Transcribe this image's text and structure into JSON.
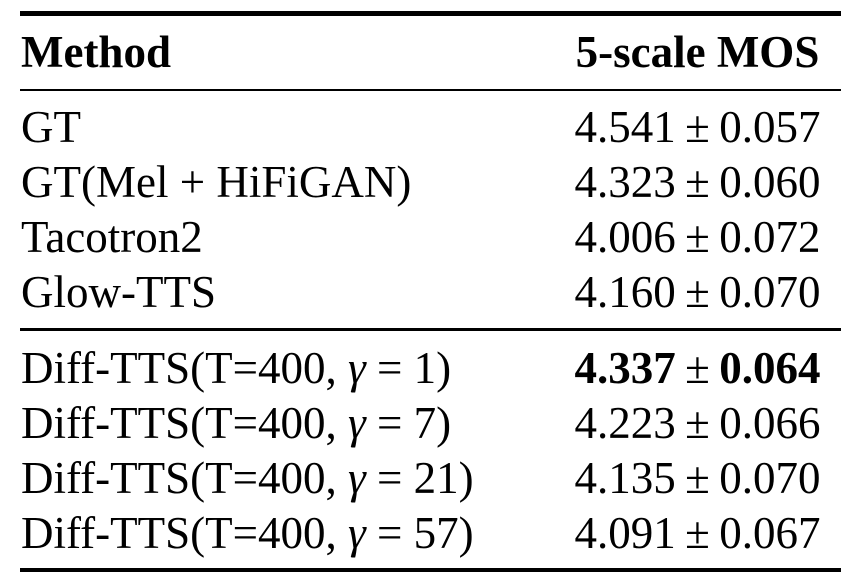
{
  "colors": {
    "background": "#ffffff",
    "text": "#000000",
    "rule": "#000000"
  },
  "table": {
    "columns": {
      "method": "Method",
      "mos": "5-scale MOS"
    },
    "pm_sign": "±",
    "sections": [
      {
        "rows": [
          {
            "label": "GT",
            "mos": "4.541",
            "err": "0.057"
          },
          {
            "label": "GT(Mel + HiFiGAN)",
            "mos": "4.323",
            "err": "0.060"
          },
          {
            "label": "Tacotron2",
            "mos": "4.006",
            "err": "0.072"
          },
          {
            "label": "Glow-TTS",
            "mos": "4.160",
            "err": "0.070"
          }
        ]
      },
      {
        "rows": [
          {
            "label_prefix": "Diff-TTS(T=400, ",
            "gamma": "γ",
            "label_suffix": " = 1)",
            "mos": "4.337",
            "err": "0.064",
            "bold": true
          },
          {
            "label_prefix": "Diff-TTS(T=400, ",
            "gamma": "γ",
            "label_suffix": " = 7)",
            "mos": "4.223",
            "err": "0.066"
          },
          {
            "label_prefix": "Diff-TTS(T=400, ",
            "gamma": "γ",
            "label_suffix": " = 21)",
            "mos": "4.135",
            "err": "0.070"
          },
          {
            "label_prefix": "Diff-TTS(T=400, ",
            "gamma": "γ",
            "label_suffix": " = 57)",
            "mos": "4.091",
            "err": "0.067"
          }
        ]
      }
    ]
  }
}
